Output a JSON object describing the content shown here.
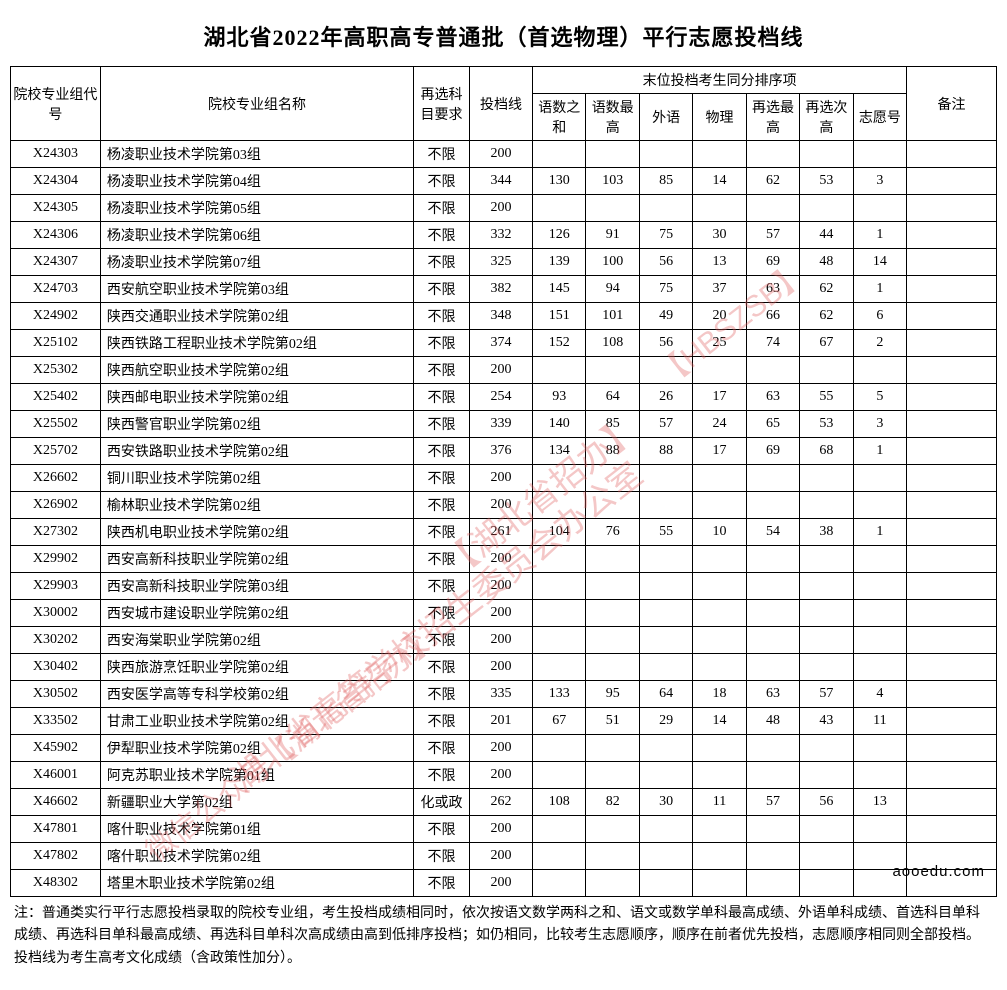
{
  "title": "湖北省2022年高职高专普通批（首选物理）平行志愿投档线",
  "headers": {
    "code": "院校专业组代号",
    "name": "院校专业组名称",
    "req": "再选科目要求",
    "score": "投档线",
    "tie_group": "末位投档考生同分排序项",
    "s1": "语数之和",
    "s2": "语数最高",
    "s3": "外语",
    "s4": "物理",
    "s5": "再选最高",
    "s6": "再选次高",
    "s7": "志愿号",
    "note": "备注"
  },
  "rows": [
    {
      "code": "X24303",
      "name": "杨凌职业技术学院第03组",
      "req": "不限",
      "score": "200",
      "s1": "",
      "s2": "",
      "s3": "",
      "s4": "",
      "s5": "",
      "s6": "",
      "s7": "",
      "note": ""
    },
    {
      "code": "X24304",
      "name": "杨凌职业技术学院第04组",
      "req": "不限",
      "score": "344",
      "s1": "130",
      "s2": "103",
      "s3": "85",
      "s4": "14",
      "s5": "62",
      "s6": "53",
      "s7": "3",
      "note": ""
    },
    {
      "code": "X24305",
      "name": "杨凌职业技术学院第05组",
      "req": "不限",
      "score": "200",
      "s1": "",
      "s2": "",
      "s3": "",
      "s4": "",
      "s5": "",
      "s6": "",
      "s7": "",
      "note": ""
    },
    {
      "code": "X24306",
      "name": "杨凌职业技术学院第06组",
      "req": "不限",
      "score": "332",
      "s1": "126",
      "s2": "91",
      "s3": "75",
      "s4": "30",
      "s5": "57",
      "s6": "44",
      "s7": "1",
      "note": ""
    },
    {
      "code": "X24307",
      "name": "杨凌职业技术学院第07组",
      "req": "不限",
      "score": "325",
      "s1": "139",
      "s2": "100",
      "s3": "56",
      "s4": "13",
      "s5": "69",
      "s6": "48",
      "s7": "14",
      "note": ""
    },
    {
      "code": "X24703",
      "name": "西安航空职业技术学院第03组",
      "req": "不限",
      "score": "382",
      "s1": "145",
      "s2": "94",
      "s3": "75",
      "s4": "37",
      "s5": "63",
      "s6": "62",
      "s7": "1",
      "note": ""
    },
    {
      "code": "X24902",
      "name": "陕西交通职业技术学院第02组",
      "req": "不限",
      "score": "348",
      "s1": "151",
      "s2": "101",
      "s3": "49",
      "s4": "20",
      "s5": "66",
      "s6": "62",
      "s7": "6",
      "note": ""
    },
    {
      "code": "X25102",
      "name": "陕西铁路工程职业技术学院第02组",
      "req": "不限",
      "score": "374",
      "s1": "152",
      "s2": "108",
      "s3": "56",
      "s4": "25",
      "s5": "74",
      "s6": "67",
      "s7": "2",
      "note": ""
    },
    {
      "code": "X25302",
      "name": "陕西航空职业技术学院第02组",
      "req": "不限",
      "score": "200",
      "s1": "",
      "s2": "",
      "s3": "",
      "s4": "",
      "s5": "",
      "s6": "",
      "s7": "",
      "note": ""
    },
    {
      "code": "X25402",
      "name": "陕西邮电职业技术学院第02组",
      "req": "不限",
      "score": "254",
      "s1": "93",
      "s2": "64",
      "s3": "26",
      "s4": "17",
      "s5": "63",
      "s6": "55",
      "s7": "5",
      "note": ""
    },
    {
      "code": "X25502",
      "name": "陕西警官职业学院第02组",
      "req": "不限",
      "score": "339",
      "s1": "140",
      "s2": "85",
      "s3": "57",
      "s4": "24",
      "s5": "65",
      "s6": "53",
      "s7": "3",
      "note": ""
    },
    {
      "code": "X25702",
      "name": "西安铁路职业技术学院第02组",
      "req": "不限",
      "score": "376",
      "s1": "134",
      "s2": "88",
      "s3": "88",
      "s4": "17",
      "s5": "69",
      "s6": "68",
      "s7": "1",
      "note": ""
    },
    {
      "code": "X26602",
      "name": "铜川职业技术学院第02组",
      "req": "不限",
      "score": "200",
      "s1": "",
      "s2": "",
      "s3": "",
      "s4": "",
      "s5": "",
      "s6": "",
      "s7": "",
      "note": ""
    },
    {
      "code": "X26902",
      "name": "榆林职业技术学院第02组",
      "req": "不限",
      "score": "200",
      "s1": "",
      "s2": "",
      "s3": "",
      "s4": "",
      "s5": "",
      "s6": "",
      "s7": "",
      "note": ""
    },
    {
      "code": "X27302",
      "name": "陕西机电职业技术学院第02组",
      "req": "不限",
      "score": "261",
      "s1": "104",
      "s2": "76",
      "s3": "55",
      "s4": "10",
      "s5": "54",
      "s6": "38",
      "s7": "1",
      "note": ""
    },
    {
      "code": "X29902",
      "name": "西安高新科技职业学院第02组",
      "req": "不限",
      "score": "200",
      "s1": "",
      "s2": "",
      "s3": "",
      "s4": "",
      "s5": "",
      "s6": "",
      "s7": "",
      "note": ""
    },
    {
      "code": "X29903",
      "name": "西安高新科技职业学院第03组",
      "req": "不限",
      "score": "200",
      "s1": "",
      "s2": "",
      "s3": "",
      "s4": "",
      "s5": "",
      "s6": "",
      "s7": "",
      "note": ""
    },
    {
      "code": "X30002",
      "name": "西安城市建设职业学院第02组",
      "req": "不限",
      "score": "200",
      "s1": "",
      "s2": "",
      "s3": "",
      "s4": "",
      "s5": "",
      "s6": "",
      "s7": "",
      "note": ""
    },
    {
      "code": "X30202",
      "name": "西安海棠职业学院第02组",
      "req": "不限",
      "score": "200",
      "s1": "",
      "s2": "",
      "s3": "",
      "s4": "",
      "s5": "",
      "s6": "",
      "s7": "",
      "note": ""
    },
    {
      "code": "X30402",
      "name": "陕西旅游烹饪职业学院第02组",
      "req": "不限",
      "score": "200",
      "s1": "",
      "s2": "",
      "s3": "",
      "s4": "",
      "s5": "",
      "s6": "",
      "s7": "",
      "note": ""
    },
    {
      "code": "X30502",
      "name": "西安医学高等专科学校第02组",
      "req": "不限",
      "score": "335",
      "s1": "133",
      "s2": "95",
      "s3": "64",
      "s4": "18",
      "s5": "63",
      "s6": "57",
      "s7": "4",
      "note": ""
    },
    {
      "code": "X33502",
      "name": "甘肃工业职业技术学院第02组",
      "req": "不限",
      "score": "201",
      "s1": "67",
      "s2": "51",
      "s3": "29",
      "s4": "14",
      "s5": "48",
      "s6": "43",
      "s7": "11",
      "note": ""
    },
    {
      "code": "X45902",
      "name": "伊犁职业技术学院第02组",
      "req": "不限",
      "score": "200",
      "s1": "",
      "s2": "",
      "s3": "",
      "s4": "",
      "s5": "",
      "s6": "",
      "s7": "",
      "note": ""
    },
    {
      "code": "X46001",
      "name": "阿克苏职业技术学院第01组",
      "req": "不限",
      "score": "200",
      "s1": "",
      "s2": "",
      "s3": "",
      "s4": "",
      "s5": "",
      "s6": "",
      "s7": "",
      "note": ""
    },
    {
      "code": "X46602",
      "name": "新疆职业大学第02组",
      "req": "化或政",
      "score": "262",
      "s1": "108",
      "s2": "82",
      "s3": "30",
      "s4": "11",
      "s5": "57",
      "s6": "56",
      "s7": "13",
      "note": ""
    },
    {
      "code": "X47801",
      "name": "喀什职业技术学院第01组",
      "req": "不限",
      "score": "200",
      "s1": "",
      "s2": "",
      "s3": "",
      "s4": "",
      "s5": "",
      "s6": "",
      "s7": "",
      "note": ""
    },
    {
      "code": "X47802",
      "name": "喀什职业技术学院第02组",
      "req": "不限",
      "score": "200",
      "s1": "",
      "s2": "",
      "s3": "",
      "s4": "",
      "s5": "",
      "s6": "",
      "s7": "",
      "note": ""
    },
    {
      "code": "X48302",
      "name": "塔里木职业技术学院第02组",
      "req": "不限",
      "score": "200",
      "s1": "",
      "s2": "",
      "s3": "",
      "s4": "",
      "s5": "",
      "s6": "",
      "s7": "",
      "note": ""
    }
  ],
  "footnote": "注：普通类实行平行志愿投档录取的院校专业组，考生投档成绩相同时，依次按语文数学两科之和、语文或数学单科最高成绩、外语单科成绩、首选科目单科成绩、再选科目单科最高成绩、再选科目单科次高成绩由高到低排序投档；如仍相同，比较考生志愿顺序，顺序在前者优先投档，志愿顺序相同则全部投档。投档线为考生高考文化成绩（含政策性加分）。",
  "watermarks": {
    "w1": "【湖北省招办】",
    "w2": "【HBSZSB】",
    "w3": "湖北省高等学校招生委员会办公室",
    "w4": "微信公众号【湖北省招办】"
  },
  "site": "aooedu.com"
}
